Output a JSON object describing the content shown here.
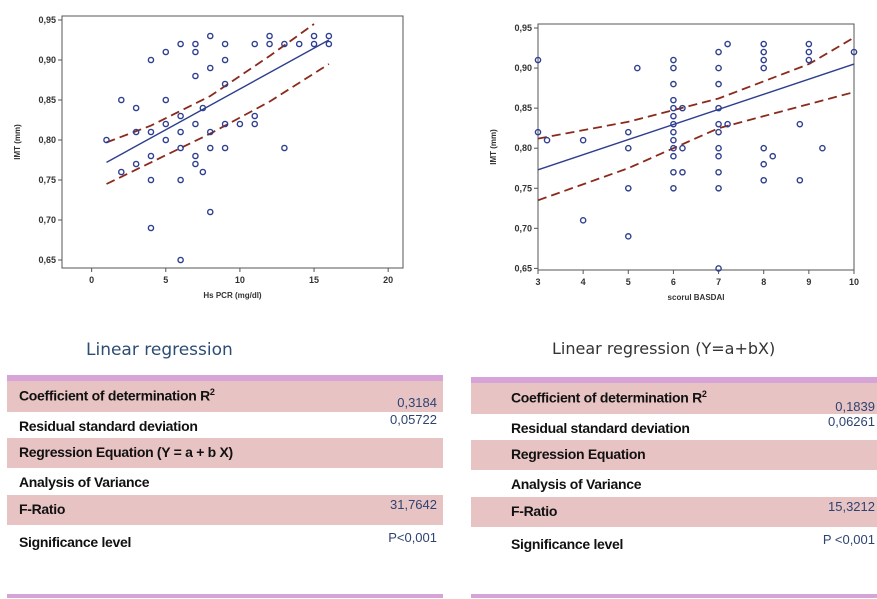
{
  "chart_data": [
    {
      "type": "scatter",
      "title": "",
      "xlabel": "Hs PCR (mg/dl)",
      "ylabel": "IMT (mm)",
      "xlim": [
        -2,
        21
      ],
      "ylim": [
        0.64,
        0.955
      ],
      "x_ticks": [
        "0",
        "5",
        "10",
        "15",
        "20"
      ],
      "y_ticks": [
        "0,65",
        "0,70",
        "0,75",
        "0,80",
        "0,85",
        "0,90",
        "0,95"
      ],
      "grid": false,
      "series": [
        {
          "points": [
            [
              1,
              0.8
            ],
            [
              2,
              0.85
            ],
            [
              2,
              0.76
            ],
            [
              3,
              0.81
            ],
            [
              3,
              0.84
            ],
            [
              3,
              0.77
            ],
            [
              4,
              0.75
            ],
            [
              4,
              0.69
            ],
            [
              4,
              0.9
            ],
            [
              4,
              0.81
            ],
            [
              4,
              0.78
            ],
            [
              5,
              0.91
            ],
            [
              5,
              0.85
            ],
            [
              5,
              0.82
            ],
            [
              5,
              0.8
            ],
            [
              6,
              0.92
            ],
            [
              6,
              0.81
            ],
            [
              6,
              0.79
            ],
            [
              6,
              0.75
            ],
            [
              6,
              0.65
            ],
            [
              6,
              0.83
            ],
            [
              7,
              0.92
            ],
            [
              7,
              0.91
            ],
            [
              7,
              0.88
            ],
            [
              7,
              0.82
            ],
            [
              7,
              0.78
            ],
            [
              7,
              0.77
            ],
            [
              7.5,
              0.76
            ],
            [
              7.5,
              0.84
            ],
            [
              8,
              0.93
            ],
            [
              8,
              0.89
            ],
            [
              8,
              0.81
            ],
            [
              8,
              0.79
            ],
            [
              8,
              0.71
            ],
            [
              9,
              0.92
            ],
            [
              9,
              0.9
            ],
            [
              9,
              0.87
            ],
            [
              9,
              0.82
            ],
            [
              9,
              0.79
            ],
            [
              10,
              0.82
            ],
            [
              11,
              0.92
            ],
            [
              11,
              0.83
            ],
            [
              11,
              0.82
            ],
            [
              12,
              0.93
            ],
            [
              12,
              0.92
            ],
            [
              13,
              0.92
            ],
            [
              13,
              0.79
            ],
            [
              14,
              0.92
            ],
            [
              15,
              0.92
            ],
            [
              15,
              0.93
            ],
            [
              16,
              0.92
            ],
            [
              16,
              0.93
            ]
          ]
        }
      ],
      "fit_line": [
        [
          1,
          0.772
        ],
        [
          16,
          0.925
        ]
      ],
      "ci_upper": [
        [
          1,
          0.797
        ],
        [
          4,
          0.818
        ],
        [
          8,
          0.855
        ],
        [
          12,
          0.905
        ],
        [
          15,
          0.945
        ]
      ],
      "ci_lower": [
        [
          1,
          0.745
        ],
        [
          4,
          0.772
        ],
        [
          8,
          0.808
        ],
        [
          12,
          0.848
        ],
        [
          16,
          0.895
        ]
      ]
    },
    {
      "type": "scatter",
      "title": "",
      "xlabel": "scorul BASDAI",
      "ylabel": "IMT (mm)",
      "xlim": [
        3,
        10
      ],
      "ylim": [
        0.648,
        0.955
      ],
      "x_ticks": [
        "3",
        "4",
        "5",
        "6",
        "7",
        "8",
        "9",
        "10"
      ],
      "y_ticks": [
        "0,65",
        "0,70",
        "0,75",
        "0,80",
        "0,85",
        "0,90",
        "0,95"
      ],
      "grid": false,
      "series": [
        {
          "points": [
            [
              3,
              0.91
            ],
            [
              3,
              0.82
            ],
            [
              3.2,
              0.81
            ],
            [
              4,
              0.71
            ],
            [
              4,
              0.81
            ],
            [
              5,
              0.82
            ],
            [
              5,
              0.8
            ],
            [
              5,
              0.75
            ],
            [
              5,
              0.69
            ],
            [
              5.2,
              0.9
            ],
            [
              6,
              0.91
            ],
            [
              6,
              0.9
            ],
            [
              6,
              0.88
            ],
            [
              6,
              0.86
            ],
            [
              6,
              0.85
            ],
            [
              6,
              0.84
            ],
            [
              6,
              0.83
            ],
            [
              6,
              0.82
            ],
            [
              6,
              0.81
            ],
            [
              6,
              0.8
            ],
            [
              6,
              0.79
            ],
            [
              6,
              0.77
            ],
            [
              6,
              0.75
            ],
            [
              6.2,
              0.85
            ],
            [
              6.2,
              0.8
            ],
            [
              6.2,
              0.77
            ],
            [
              7,
              0.92
            ],
            [
              7,
              0.9
            ],
            [
              7,
              0.88
            ],
            [
              7,
              0.85
            ],
            [
              7,
              0.83
            ],
            [
              7,
              0.82
            ],
            [
              7,
              0.8
            ],
            [
              7,
              0.79
            ],
            [
              7,
              0.77
            ],
            [
              7,
              0.75
            ],
            [
              7,
              0.65
            ],
            [
              7.2,
              0.93
            ],
            [
              7.2,
              0.83
            ],
            [
              8,
              0.93
            ],
            [
              8,
              0.92
            ],
            [
              8,
              0.91
            ],
            [
              8,
              0.9
            ],
            [
              8,
              0.8
            ],
            [
              8,
              0.78
            ],
            [
              8,
              0.76
            ],
            [
              8.2,
              0.79
            ],
            [
              8.8,
              0.76
            ],
            [
              8.8,
              0.83
            ],
            [
              9,
              0.93
            ],
            [
              9,
              0.92
            ],
            [
              9,
              0.91
            ],
            [
              9.3,
              0.8
            ],
            [
              10,
              0.92
            ]
          ]
        }
      ],
      "fit_line": [
        [
          3,
          0.773
        ],
        [
          10,
          0.905
        ]
      ],
      "ci_upper": [
        [
          3,
          0.812
        ],
        [
          5,
          0.833
        ],
        [
          7,
          0.862
        ],
        [
          9,
          0.905
        ],
        [
          10,
          0.938
        ]
      ],
      "ci_lower": [
        [
          3,
          0.735
        ],
        [
          5,
          0.775
        ],
        [
          7,
          0.825
        ],
        [
          9,
          0.855
        ],
        [
          10,
          0.87
        ]
      ]
    }
  ],
  "left": {
    "caption": "Linear regression",
    "rows": [
      {
        "label": "Coefficient of determination R",
        "sup": "2",
        "value": "0,3184"
      },
      {
        "label": "Residual standard deviation",
        "value": "0,05722"
      },
      {
        "label": "Regression Equation (Y = a + b X)",
        "value": ""
      },
      {
        "label": "Analysis of Variance",
        "value": ""
      },
      {
        "label": "F-Ratio",
        "value": "31,7642"
      },
      {
        "label": "Significance level",
        "value": "P<0,001"
      }
    ]
  },
  "right": {
    "caption": "Linear regression  (Y=a+bX)",
    "rows": [
      {
        "label": "Coefficient of determination R",
        "sup": "2",
        "value": "0,1839"
      },
      {
        "label": "Residual standard deviation",
        "value": "0,06261"
      },
      {
        "label": "Regression Equation",
        "value": ""
      },
      {
        "label": "Analysis of Variance",
        "value": ""
      },
      {
        "label": "F-Ratio",
        "value": "15,3212"
      },
      {
        "label": "Significance level",
        "value": "P <0,001"
      }
    ]
  },
  "colors": {
    "points": "#2e3f8f",
    "fit_line": "#2e3f8f",
    "ci_line": "#8b2a1c",
    "row_shade": "#e8c3c3",
    "table_bar": "#d7a4d7",
    "caption": "#2d4d74"
  }
}
